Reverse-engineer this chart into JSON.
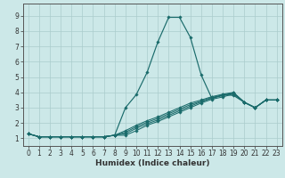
{
  "title": "",
  "xlabel": "Humidex (Indice chaleur)",
  "xlim": [
    -0.5,
    23.5
  ],
  "ylim": [
    0.5,
    9.8
  ],
  "xticks": [
    0,
    1,
    2,
    3,
    4,
    5,
    6,
    7,
    8,
    9,
    10,
    11,
    12,
    13,
    14,
    15,
    16,
    17,
    18,
    19,
    20,
    21,
    22,
    23
  ],
  "yticks": [
    1,
    2,
    3,
    4,
    5,
    6,
    7,
    8,
    9
  ],
  "background_color": "#cce8e8",
  "grid_color": "#aacccc",
  "line_color": "#1a6b6b",
  "spike_line": [
    1.3,
    1.1,
    1.1,
    1.1,
    1.1,
    1.1,
    1.1,
    1.1,
    1.2,
    3.0,
    3.85,
    5.3,
    7.3,
    8.9,
    8.9,
    7.6,
    5.15,
    3.6,
    3.85,
    3.8,
    3.35,
    3.0,
    3.5,
    3.5
  ],
  "linear_lines": [
    [
      1.3,
      1.1,
      1.1,
      1.1,
      1.1,
      1.1,
      1.1,
      1.1,
      1.2,
      1.2,
      1.5,
      1.85,
      2.1,
      2.4,
      2.7,
      3.0,
      3.3,
      3.55,
      3.7,
      3.9,
      3.35,
      3.0,
      3.5,
      3.5
    ],
    [
      1.3,
      1.1,
      1.1,
      1.1,
      1.1,
      1.1,
      1.1,
      1.1,
      1.2,
      1.3,
      1.65,
      1.95,
      2.2,
      2.5,
      2.8,
      3.1,
      3.38,
      3.62,
      3.78,
      3.95,
      3.35,
      3.0,
      3.5,
      3.5
    ],
    [
      1.3,
      1.1,
      1.1,
      1.1,
      1.1,
      1.1,
      1.1,
      1.1,
      1.2,
      1.4,
      1.75,
      2.05,
      2.3,
      2.6,
      2.9,
      3.2,
      3.42,
      3.67,
      3.82,
      3.97,
      3.35,
      3.0,
      3.5,
      3.5
    ],
    [
      1.3,
      1.1,
      1.1,
      1.1,
      1.1,
      1.1,
      1.1,
      1.1,
      1.2,
      1.5,
      1.85,
      2.15,
      2.4,
      2.7,
      3.0,
      3.3,
      3.5,
      3.72,
      3.88,
      4.0,
      3.35,
      3.0,
      3.5,
      3.5
    ]
  ],
  "figsize": [
    3.2,
    2.0
  ],
  "dpi": 100,
  "tick_fontsize": 5.5,
  "xlabel_fontsize": 6.5
}
